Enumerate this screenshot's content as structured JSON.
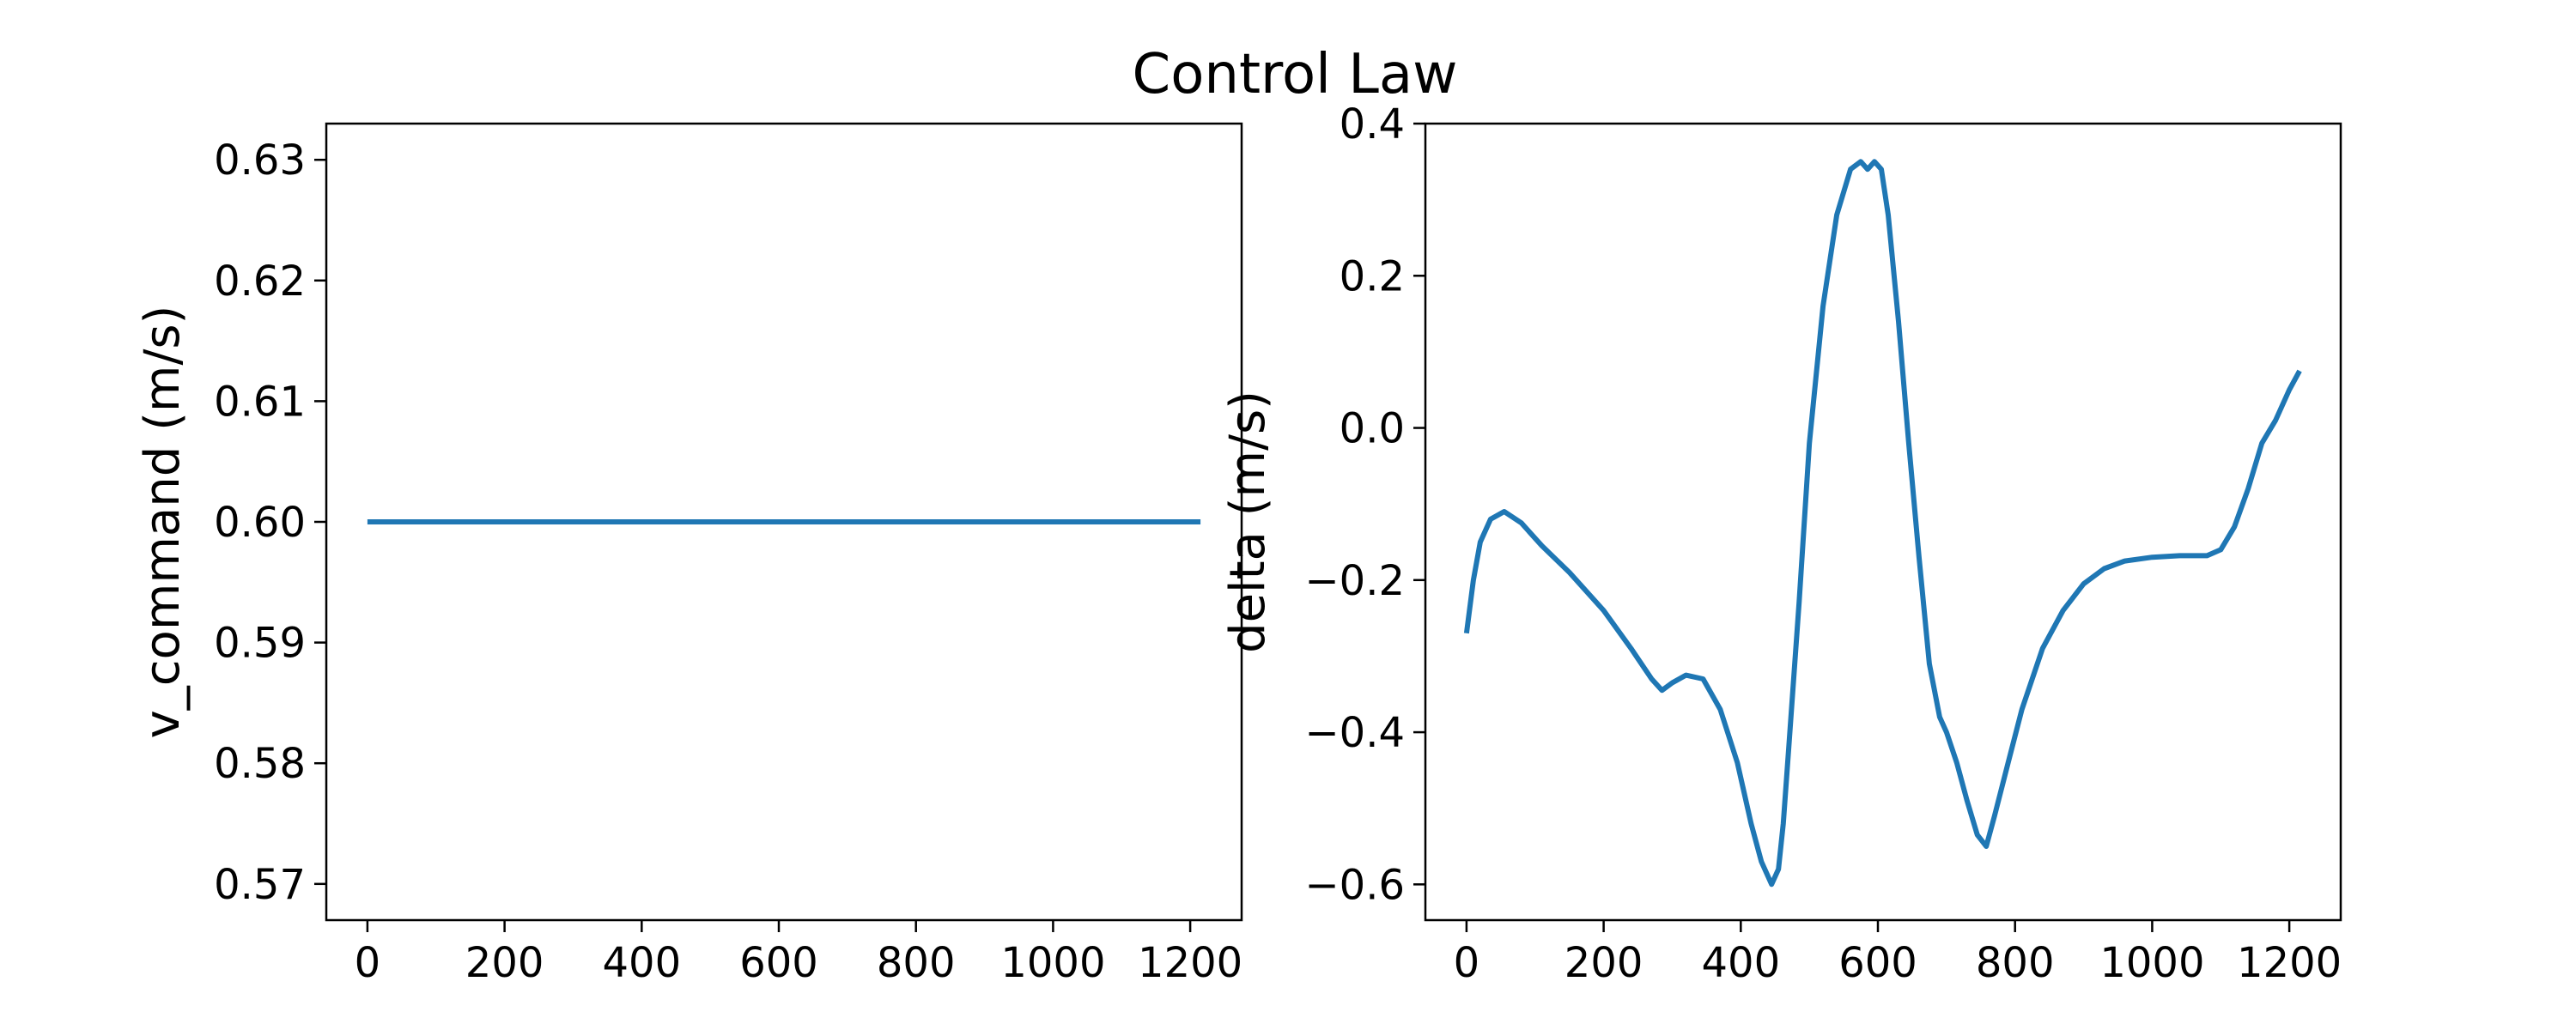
{
  "figure": {
    "title": "Control Law",
    "line_color": "#1f77b4"
  },
  "chart_data": [
    {
      "type": "line",
      "title": "",
      "xlabel": "",
      "ylabel": "v_command (m/s)",
      "xlim": [
        -60,
        1275
      ],
      "ylim": [
        0.567,
        0.633
      ],
      "xticks": [
        0,
        200,
        400,
        600,
        800,
        1000,
        1200
      ],
      "yticks": [
        0.57,
        0.58,
        0.59,
        0.6,
        0.61,
        0.62,
        0.63
      ],
      "xtick_labels": [
        "0",
        "200",
        "400",
        "600",
        "800",
        "1000",
        "1200"
      ],
      "ytick_labels": [
        "0.57",
        "0.58",
        "0.59",
        "0.60",
        "0.61",
        "0.62",
        "0.63"
      ],
      "grid": false,
      "series": [
        {
          "x": [
            0,
            1215
          ],
          "y": [
            0.6,
            0.6
          ]
        }
      ]
    },
    {
      "type": "line",
      "title": "",
      "xlabel": "",
      "ylabel": "delta (m/s)",
      "xlim": [
        -60,
        1275
      ],
      "ylim": [
        -0.647,
        0.4
      ],
      "xticks": [
        0,
        200,
        400,
        600,
        800,
        1000,
        1200
      ],
      "yticks": [
        -0.6,
        -0.4,
        -0.2,
        0.0,
        0.2,
        0.4
      ],
      "xtick_labels": [
        "0",
        "200",
        "400",
        "600",
        "800",
        "1000",
        "1200"
      ],
      "ytick_labels": [
        "−0.6",
        "−0.4",
        "−0.2",
        "0.0",
        "0.2",
        "0.4"
      ],
      "grid": false,
      "series": [
        {
          "x": [
            0,
            10,
            20,
            35,
            55,
            80,
            110,
            150,
            200,
            240,
            270,
            285,
            300,
            320,
            345,
            370,
            395,
            415,
            430,
            445,
            455,
            462,
            470,
            485,
            500,
            520,
            540,
            560,
            575,
            585,
            595,
            605,
            615,
            630,
            645,
            660,
            675,
            690,
            700,
            715,
            730,
            745,
            758,
            770,
            790,
            810,
            840,
            870,
            900,
            930,
            960,
            1000,
            1040,
            1080,
            1100,
            1120,
            1140,
            1160,
            1180,
            1200,
            1215
          ],
          "y": [
            -0.27,
            -0.2,
            -0.15,
            -0.12,
            -0.11,
            -0.125,
            -0.155,
            -0.19,
            -0.24,
            -0.29,
            -0.33,
            -0.345,
            -0.335,
            -0.325,
            -0.33,
            -0.37,
            -0.44,
            -0.52,
            -0.57,
            -0.6,
            -0.58,
            -0.52,
            -0.42,
            -0.23,
            -0.02,
            0.16,
            0.28,
            0.34,
            0.35,
            0.34,
            0.35,
            0.34,
            0.28,
            0.14,
            -0.02,
            -0.17,
            -0.31,
            -0.38,
            -0.4,
            -0.44,
            -0.49,
            -0.535,
            -0.55,
            -0.51,
            -0.44,
            -0.37,
            -0.29,
            -0.24,
            -0.205,
            -0.185,
            -0.175,
            -0.17,
            -0.168,
            -0.168,
            -0.16,
            -0.13,
            -0.08,
            -0.02,
            0.01,
            0.05,
            0.075
          ]
        }
      ]
    }
  ]
}
